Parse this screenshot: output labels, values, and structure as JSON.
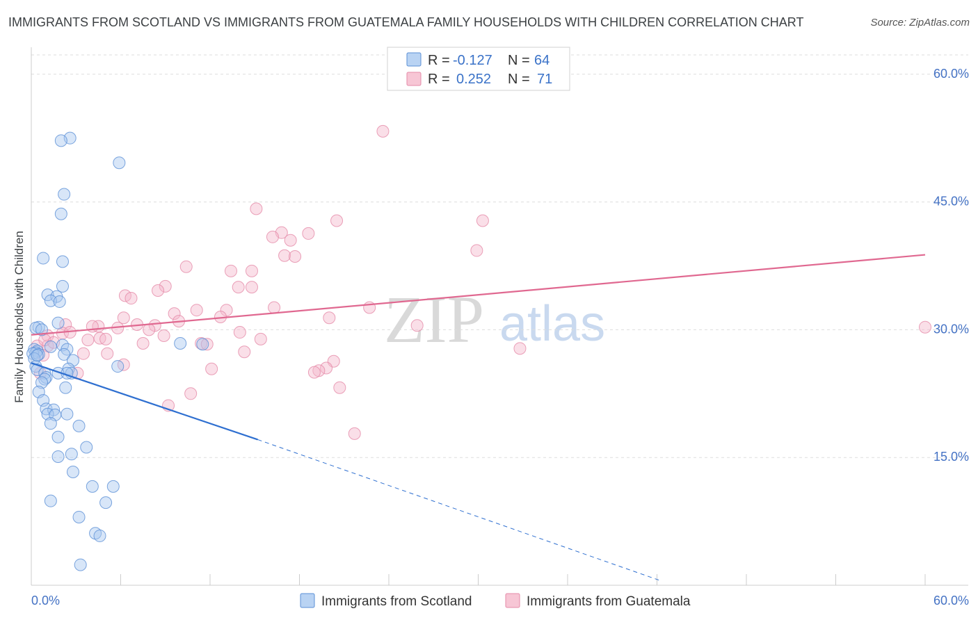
{
  "title": "IMMIGRANTS FROM SCOTLAND VS IMMIGRANTS FROM GUATEMALA FAMILY HOUSEHOLDS WITH CHILDREN CORRELATION CHART",
  "source": "Source: ZipAtlas.com",
  "watermark": {
    "zip": "ZIP",
    "atlas": "atlas"
  },
  "colors": {
    "scotland_fill": "#a8c8f0",
    "scotland_stroke": "#5a8fd6",
    "scotland_line": "#2e6fd0",
    "guatemala_fill": "#f5b8cb",
    "guatemala_stroke": "#e58aa8",
    "guatemala_line": "#e06890",
    "axis_text": "#4472c4",
    "grid": "#dddddd"
  },
  "stats": [
    {
      "r_label": "R =",
      "r_value": "-0.127",
      "n_label": "N =",
      "n_value": "64"
    },
    {
      "r_label": "R =",
      "r_value": "0.252",
      "n_label": "N =",
      "n_value": "71"
    }
  ],
  "chart_data": {
    "type": "scatter",
    "title": "IMMIGRANTS FROM SCOTLAND VS IMMIGRANTS FROM GUATEMALA FAMILY HOUSEHOLDS WITH CHILDREN CORRELATION CHART",
    "xlabel": "",
    "ylabel": "Family Households with Children",
    "xlim": [
      0,
      60
    ],
    "ylim": [
      0,
      63
    ],
    "x_tick_labels": [
      "0.0%",
      "60.0%"
    ],
    "y_ticks": [
      15,
      30,
      45,
      60
    ],
    "y_tick_labels": [
      "15.0%",
      "30.0%",
      "45.0%",
      "60.0%"
    ],
    "grid": true,
    "legend_position": "bottom",
    "series": [
      {
        "name": "Immigrants from Scotland",
        "r": -0.127,
        "n": 64,
        "trend": {
          "x": [
            0,
            15.2
          ],
          "y": [
            26.1,
            17.1
          ],
          "dashed_to": {
            "x": 42.3,
            "y": 0.5
          }
        },
        "points": [
          [
            2.6,
            52.5
          ],
          [
            2.0,
            52.2
          ],
          [
            5.9,
            49.6
          ],
          [
            2.2,
            45.9
          ],
          [
            2.0,
            43.6
          ],
          [
            0.8,
            38.4
          ],
          [
            2.1,
            38.0
          ],
          [
            2.1,
            35.1
          ],
          [
            1.1,
            34.1
          ],
          [
            1.7,
            33.9
          ],
          [
            1.3,
            33.4
          ],
          [
            1.9,
            33.3
          ],
          [
            1.8,
            30.8
          ],
          [
            0.5,
            30.3
          ],
          [
            0.3,
            30.2
          ],
          [
            0.7,
            30.0
          ],
          [
            10.0,
            28.4
          ],
          [
            11.5,
            28.3
          ],
          [
            2.1,
            28.2
          ],
          [
            1.3,
            28.0
          ],
          [
            2.4,
            27.7
          ],
          [
            0.2,
            27.7
          ],
          [
            0.4,
            27.5
          ],
          [
            0.3,
            27.3
          ],
          [
            0.1,
            27.2
          ],
          [
            0.5,
            27.1
          ],
          [
            2.2,
            27.1
          ],
          [
            0.2,
            26.6
          ],
          [
            2.8,
            26.4
          ],
          [
            0.3,
            25.7
          ],
          [
            5.8,
            25.7
          ],
          [
            2.5,
            25.4
          ],
          [
            0.4,
            25.3
          ],
          [
            2.7,
            24.9
          ],
          [
            1.8,
            24.9
          ],
          [
            2.4,
            24.9
          ],
          [
            0.9,
            24.9
          ],
          [
            1.0,
            24.4
          ],
          [
            0.9,
            24.2
          ],
          [
            0.7,
            23.8
          ],
          [
            2.3,
            23.2
          ],
          [
            0.5,
            22.7
          ],
          [
            0.8,
            21.7
          ],
          [
            1.0,
            20.7
          ],
          [
            1.5,
            20.6
          ],
          [
            1.1,
            20.1
          ],
          [
            2.4,
            20.1
          ],
          [
            1.6,
            20.0
          ],
          [
            1.3,
            19.0
          ],
          [
            3.2,
            18.7
          ],
          [
            1.8,
            17.4
          ],
          [
            3.7,
            16.2
          ],
          [
            1.8,
            15.1
          ],
          [
            2.7,
            15.4
          ],
          [
            2.8,
            13.3
          ],
          [
            4.1,
            11.6
          ],
          [
            5.5,
            11.6
          ],
          [
            5.0,
            9.7
          ],
          [
            1.3,
            9.9
          ],
          [
            3.2,
            8.0
          ],
          [
            4.3,
            6.1
          ],
          [
            4.6,
            5.8
          ],
          [
            3.3,
            2.4
          ],
          [
            0.4,
            27.0
          ]
        ]
      },
      {
        "name": "Immigrants from Guatemala",
        "r": 0.252,
        "n": 71,
        "trend": {
          "x": [
            0,
            60
          ],
          "y": [
            29.4,
            38.8
          ]
        },
        "points": [
          [
            23.6,
            53.3
          ],
          [
            15.1,
            44.2
          ],
          [
            20.5,
            42.8
          ],
          [
            30.3,
            42.8
          ],
          [
            16.8,
            41.4
          ],
          [
            18.6,
            41.3
          ],
          [
            16.2,
            40.9
          ],
          [
            29.9,
            39.3
          ],
          [
            17.0,
            38.7
          ],
          [
            17.7,
            38.6
          ],
          [
            10.4,
            37.4
          ],
          [
            13.4,
            36.9
          ],
          [
            14.8,
            36.9
          ],
          [
            14.8,
            35.0
          ],
          [
            9.0,
            35.1
          ],
          [
            8.5,
            34.6
          ],
          [
            6.3,
            34.0
          ],
          [
            6.7,
            33.7
          ],
          [
            22.7,
            32.6
          ],
          [
            16.3,
            32.6
          ],
          [
            11.1,
            32.3
          ],
          [
            13.1,
            32.3
          ],
          [
            9.6,
            31.9
          ],
          [
            12.7,
            31.5
          ],
          [
            20.0,
            31.4
          ],
          [
            6.2,
            31.4
          ],
          [
            9.9,
            31.0
          ],
          [
            2.3,
            30.6
          ],
          [
            4.5,
            30.4
          ],
          [
            7.1,
            30.6
          ],
          [
            8.3,
            30.5
          ],
          [
            4.1,
            30.4
          ],
          [
            25.9,
            30.5
          ],
          [
            5.8,
            30.2
          ],
          [
            7.9,
            30.0
          ],
          [
            14.0,
            29.7
          ],
          [
            2.1,
            29.6
          ],
          [
            60.0,
            30.3
          ],
          [
            8.9,
            29.3
          ],
          [
            1.1,
            29.3
          ],
          [
            4.6,
            29.0
          ],
          [
            5.0,
            28.9
          ],
          [
            15.4,
            28.9
          ],
          [
            3.8,
            28.8
          ],
          [
            7.5,
            28.4
          ],
          [
            11.4,
            28.4
          ],
          [
            11.8,
            28.3
          ],
          [
            1.1,
            28.1
          ],
          [
            0.4,
            28.1
          ],
          [
            32.8,
            27.8
          ],
          [
            14.3,
            27.4
          ],
          [
            5.1,
            27.2
          ],
          [
            3.5,
            27.2
          ],
          [
            0.8,
            27.0
          ],
          [
            6.2,
            25.9
          ],
          [
            20.3,
            26.3
          ],
          [
            19.8,
            25.5
          ],
          [
            19.3,
            25.2
          ],
          [
            19.0,
            25.0
          ],
          [
            12.1,
            25.4
          ],
          [
            3.1,
            24.9
          ],
          [
            0.6,
            24.9
          ],
          [
            20.7,
            23.2
          ],
          [
            10.7,
            22.5
          ],
          [
            9.2,
            21.1
          ],
          [
            21.7,
            17.8
          ],
          [
            0.9,
            28.8
          ],
          [
            2.6,
            29.7
          ],
          [
            13.9,
            35.0
          ],
          [
            17.4,
            40.5
          ],
          [
            1.5,
            28.5
          ]
        ]
      }
    ]
  },
  "legend": [
    {
      "label": "Immigrants from Scotland"
    },
    {
      "label": "Immigrants from Guatemala"
    }
  ]
}
